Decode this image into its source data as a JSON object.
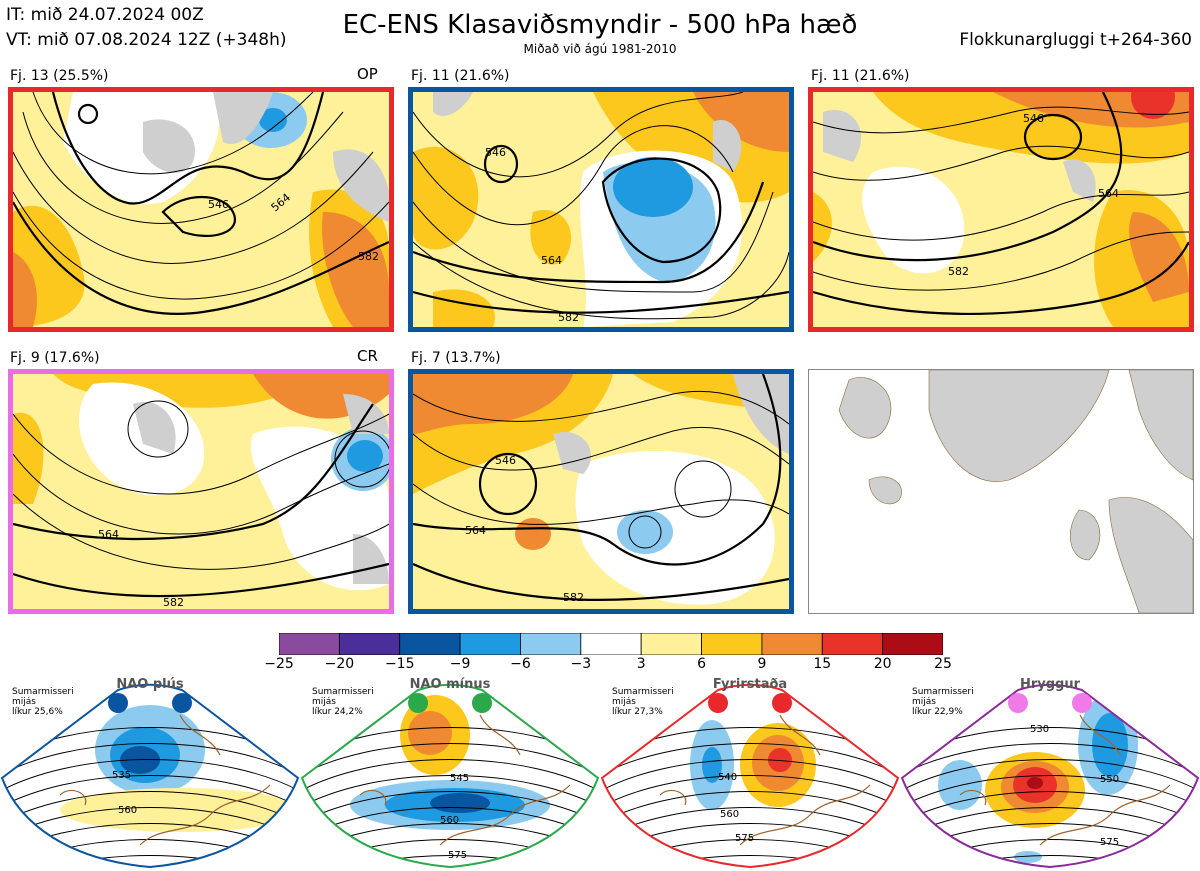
{
  "header": {
    "initial_time": "IT: mið 24.07.2024 00Z",
    "valid_time": "VT: mið 07.08.2024 12Z  (+348h)",
    "title": "EC-ENS Klasaviðsmyndir - 500 hPa hæð",
    "subtitle": "Miðað við ágú 1981-2010",
    "window": "Flokkunargluggi t+264-360"
  },
  "panels": [
    {
      "label": "Fj. 13 (25.5%)",
      "tag": "OP",
      "frame_color": "#e8282a",
      "contours": [
        "546",
        "564",
        "582"
      ]
    },
    {
      "label": "Fj. 11 (21.6%)",
      "tag": "",
      "frame_color": "#0a55a0",
      "contours": [
        "546",
        "564",
        "582"
      ]
    },
    {
      "label": "Fj. 11 (21.6%)",
      "tag": "",
      "frame_color": "#e8282a",
      "contours": [
        "546",
        "564",
        "582"
      ]
    },
    {
      "label": "Fj. 9 (17.6%)",
      "tag": "CR",
      "frame_color": "#e86ee8",
      "contours": [
        "564",
        "582"
      ]
    },
    {
      "label": "Fj. 7 (13.7%)",
      "tag": "",
      "frame_color": "#0a55a0",
      "contours": [
        "546",
        "564",
        "582"
      ]
    }
  ],
  "colorbar": {
    "ticks": [
      "−25",
      "−20",
      "−15",
      "−9",
      "−6",
      "−3",
      "3",
      "6",
      "9",
      "15",
      "20",
      "25"
    ],
    "colors": [
      "#8a4a9e",
      "#4a2e9a",
      "#0a55a0",
      "#1f9ae0",
      "#8ccbef",
      "#ffffff",
      "#fff09a",
      "#fcc81e",
      "#f08a32",
      "#e8322a",
      "#ab0c16"
    ]
  },
  "regimes": [
    {
      "name": "NAO plús",
      "note": [
        "Sumarmisseri",
        "mijás",
        "líkur 25,6%"
      ],
      "color": "#0a55a0",
      "contours": [
        "535",
        "560"
      ]
    },
    {
      "name": "NAO mínus",
      "note": [
        "Sumarmisseri",
        "mijás",
        "líkur 24,2%"
      ],
      "color": "#2aa84a",
      "contours": [
        "545",
        "560",
        "575"
      ]
    },
    {
      "name": "Fyrirstaða",
      "note": [
        "Sumarmisseri",
        "mijás",
        "líkur 27,3%"
      ],
      "color": "#e8282a",
      "contours": [
        "540",
        "560",
        "575"
      ]
    },
    {
      "name": "Hryggur",
      "note": [
        "Sumarmisseri",
        "mijás",
        "líkur 22,9%"
      ],
      "color": "#8a2a9a",
      "marker_color": "#f07ae8",
      "contours": [
        "530",
        "550",
        "575"
      ]
    }
  ],
  "chart_data": {
    "type": "heatmap",
    "title": "EC-ENS Klasaviðsmyndir - 500 hPa hæð",
    "clusters": [
      {
        "label": "Fj. 13 (25.5%)",
        "members": 13,
        "percent": 25.5,
        "tag": "OP"
      },
      {
        "label": "Fj. 11 (21.6%)",
        "members": 11,
        "percent": 21.6,
        "tag": ""
      },
      {
        "label": "Fj. 11 (21.6%)",
        "members": 11,
        "percent": 21.6,
        "tag": ""
      },
      {
        "label": "Fj. 9 (17.6%)",
        "members": 9,
        "percent": 17.6,
        "tag": "CR"
      },
      {
        "label": "Fj. 7 (13.7%)",
        "members": 7,
        "percent": 13.7,
        "tag": ""
      }
    ],
    "anomaly_levels": [
      -25,
      -20,
      -15,
      -9,
      -6,
      -3,
      3,
      6,
      9,
      15,
      20,
      25
    ],
    "regime_probabilities": [
      {
        "name": "NAO plús",
        "percent": 25.6
      },
      {
        "name": "NAO mínus",
        "percent": 24.2
      },
      {
        "name": "Fyrirstaða",
        "percent": 27.3
      },
      {
        "name": "Hryggur",
        "percent": 22.9
      }
    ]
  }
}
